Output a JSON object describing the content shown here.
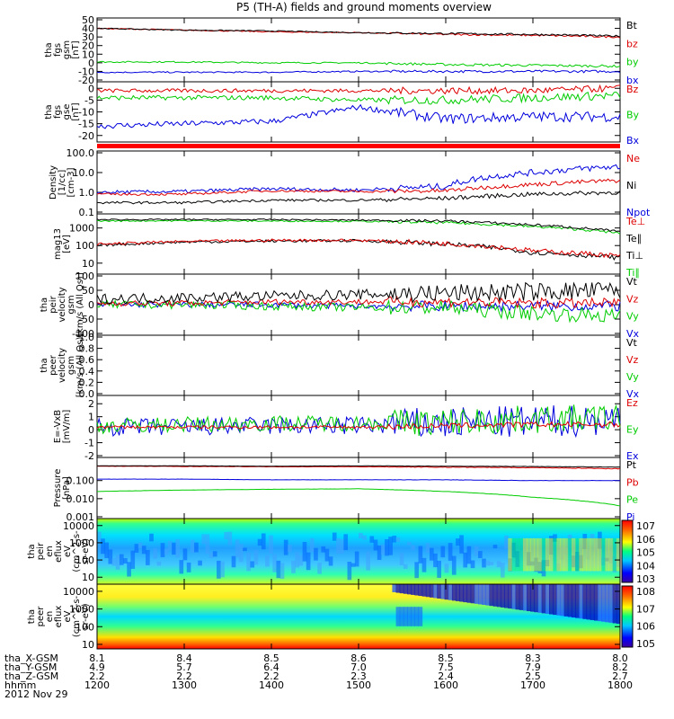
{
  "title": "P5 (TH-A) fields and ground moments overview",
  "colors": {
    "black": "#000000",
    "red": "#dd0000",
    "green": "#00cc00",
    "blue": "#0000dd"
  },
  "panels": [
    {
      "id": "fgs-gsm",
      "ylabel": [
        "tha",
        "fgs",
        "gsm",
        "[nT]"
      ],
      "ticks": [
        50,
        40,
        30,
        20,
        10,
        0,
        -10,
        -20
      ],
      "range": [
        -20,
        50
      ],
      "legend": [
        {
          "text": "Bt",
          "color": "black"
        },
        {
          "text": "bz",
          "color": "red"
        },
        {
          "text": "by",
          "color": "green"
        },
        {
          "text": "bx",
          "color": "blue"
        }
      ]
    },
    {
      "id": "fgs-gse",
      "ylabel": [
        "tha",
        "fgs",
        "gse",
        "[nT]"
      ],
      "ticks": [
        0,
        -5,
        -10,
        -15,
        -20
      ],
      "range": [
        -22,
        2
      ],
      "legend": [
        {
          "text": "Bz",
          "color": "red"
        },
        {
          "text": "By",
          "color": "green"
        },
        {
          "text": "Bx",
          "color": "blue"
        }
      ]
    },
    {
      "id": "density",
      "ylabel": [
        "Density",
        "[1/cc]",
        "[cm-3]"
      ],
      "ticks": [
        "100.0",
        "10.0",
        "1.0",
        "0.1"
      ],
      "range": [
        0.1,
        100
      ],
      "legend": [
        {
          "text": "Ne",
          "color": "red"
        },
        {
          "text": "Ni",
          "color": "black"
        },
        {
          "text": "Npot",
          "color": "blue"
        }
      ]
    },
    {
      "id": "temp",
      "ylabel": [
        "mag13",
        "[eV]"
      ],
      "ticks": [
        1000,
        100,
        10
      ],
      "range": [
        3,
        5000
      ],
      "legend": [
        {
          "text": "Te⊥",
          "color": "red"
        },
        {
          "text": "Te∥",
          "color": "black"
        },
        {
          "text": "Ti⊥",
          "color": "black"
        },
        {
          "text": "Ti∥",
          "color": "green"
        }
      ]
    },
    {
      "id": "peir-vel",
      "ylabel": [
        "tha",
        "peir",
        "velocity",
        "gsm",
        "[km/s (All Qs)]"
      ],
      "ticks": [
        100,
        50,
        0,
        -50,
        -100
      ],
      "range": [
        -100,
        100
      ],
      "legend": [
        {
          "text": "Vt",
          "color": "black"
        },
        {
          "text": "Vz",
          "color": "red"
        },
        {
          "text": "Vy",
          "color": "green"
        },
        {
          "text": "Vx",
          "color": "blue"
        }
      ]
    },
    {
      "id": "peer-vel",
      "ylabel": [
        "tha",
        "peer",
        "velocity",
        "gsm",
        "[km/s (All Qs)]"
      ],
      "ticks": [
        "1.0",
        "0.8",
        "0.6",
        "0.4",
        "0.2",
        "0.0"
      ],
      "range": [
        0,
        1
      ],
      "legend": [
        {
          "text": "Vt",
          "color": "black"
        },
        {
          "text": "Vz",
          "color": "red"
        },
        {
          "text": "Vy",
          "color": "green"
        },
        {
          "text": "Vx",
          "color": "blue"
        }
      ]
    },
    {
      "id": "efield",
      "ylabel": [
        "E=-VxB",
        "[mV/m]"
      ],
      "ticks": [
        2,
        1,
        0,
        -1,
        -2
      ],
      "range": [
        -2,
        2.5
      ],
      "legend": [
        {
          "text": "Ez",
          "color": "red"
        },
        {
          "text": "Ey",
          "color": "green"
        },
        {
          "text": "Ex",
          "color": "blue"
        }
      ]
    },
    {
      "id": "pressure",
      "ylabel": [
        "Pressure",
        "[nPa]"
      ],
      "ticks": [
        "0.100",
        "0.010",
        "0.001"
      ],
      "range": [
        0.001,
        1.5
      ],
      "legend": [
        {
          "text": "Pt",
          "color": "black"
        },
        {
          "text": "Pb",
          "color": "red"
        },
        {
          "text": "Pe",
          "color": "green"
        },
        {
          "text": "Pi",
          "color": "blue"
        }
      ]
    },
    {
      "id": "peir-eflux",
      "ylabel": [
        "tha",
        "peir",
        "en",
        "eflux",
        "eV",
        "(cm^2-s-",
        "sr-eV)"
      ],
      "ticks": [
        10000,
        1000,
        100,
        10
      ],
      "range": [
        5,
        20000
      ],
      "colorbar": [
        "10^7",
        "10^6",
        "10^5",
        "10^4",
        "10^3"
      ]
    },
    {
      "id": "peer-eflux",
      "ylabel": [
        "tha",
        "peer",
        "en",
        "eflux",
        "eV",
        "(cm^2-s-",
        "sr-eV)"
      ],
      "ticks": [
        10000,
        1000,
        100,
        10
      ],
      "range": [
        7,
        20000
      ],
      "colorbar": [
        "10^8",
        "10^7",
        "10^6",
        "10^5"
      ]
    }
  ],
  "chart_data": {
    "type": "line",
    "title": "P5 (TH-A) fields and ground moments overview",
    "x_time_hhmm": [
      "1200",
      "1300",
      "1400",
      "1500",
      "1600",
      "1700",
      "1800"
    ],
    "date": "2012 Nov 29",
    "series": [
      {
        "panel": "fgs-gsm",
        "name": "Bt",
        "values": [
          40,
          38,
          37,
          35,
          34,
          33,
          31
        ]
      },
      {
        "panel": "fgs-gsm",
        "name": "bz",
        "values": [
          40,
          38,
          36,
          35,
          33,
          32,
          30
        ]
      },
      {
        "panel": "fgs-gsm",
        "name": "by",
        "values": [
          1,
          1,
          0,
          0,
          -2,
          -3,
          -4
        ]
      },
      {
        "panel": "fgs-gsm",
        "name": "bx",
        "values": [
          -11,
          -11,
          -11,
          -10,
          -10,
          -10,
          -10
        ]
      },
      {
        "panel": "fgs-gse",
        "name": "Bz",
        "values": [
          -1,
          -1,
          -1,
          -1,
          -1,
          -1,
          0
        ]
      },
      {
        "panel": "fgs-gse",
        "name": "By",
        "values": [
          -4,
          -4,
          -4,
          -5,
          -5,
          -4,
          -3
        ]
      },
      {
        "panel": "fgs-gse",
        "name": "Bx",
        "values": [
          -16,
          -15,
          -14,
          -8,
          -13,
          -12,
          -12
        ]
      },
      {
        "panel": "density",
        "name": "Ne",
        "values": [
          0.8,
          0.8,
          1.2,
          1.1,
          1.2,
          2.5,
          4.0
        ]
      },
      {
        "panel": "density",
        "name": "Ni",
        "values": [
          0.3,
          0.3,
          0.4,
          0.4,
          0.5,
          0.8,
          1.0
        ]
      },
      {
        "panel": "density",
        "name": "Npot",
        "values": [
          1.0,
          1.1,
          1.5,
          1.3,
          2.0,
          10.0,
          20.0
        ]
      },
      {
        "panel": "temp",
        "name": "Te⊥",
        "values": [
          120,
          170,
          200,
          200,
          130,
          50,
          25
        ]
      },
      {
        "panel": "temp",
        "name": "Te∥",
        "values": [
          100,
          160,
          180,
          190,
          120,
          40,
          20
        ]
      },
      {
        "panel": "temp",
        "name": "Ti⊥",
        "values": [
          3000,
          3000,
          3000,
          2800,
          2500,
          1500,
          600
        ]
      },
      {
        "panel": "temp",
        "name": "Ti∥",
        "values": [
          2500,
          2600,
          2500,
          2400,
          2000,
          1200,
          500
        ]
      },
      {
        "panel": "peir-vel",
        "name": "Vt",
        "values": [
          20,
          25,
          30,
          35,
          40,
          45,
          50
        ]
      },
      {
        "panel": "peir-vel",
        "name": "Vz",
        "values": [
          5,
          5,
          10,
          10,
          10,
          5,
          5
        ]
      },
      {
        "panel": "peir-vel",
        "name": "Vy",
        "values": [
          0,
          0,
          -5,
          -10,
          -10,
          -30,
          -40
        ]
      },
      {
        "panel": "peir-vel",
        "name": "Vx",
        "values": [
          0,
          0,
          0,
          -5,
          -5,
          -5,
          -5
        ]
      },
      {
        "panel": "efield",
        "name": "Ez",
        "values": [
          0.2,
          0.2,
          0.2,
          0.2,
          0.3,
          0.4,
          0.4
        ]
      },
      {
        "panel": "efield",
        "name": "Ey",
        "values": [
          0.3,
          0.4,
          0.5,
          0.5,
          0.6,
          0.8,
          0.9
        ]
      },
      {
        "panel": "efield",
        "name": "Ex",
        "values": [
          0.2,
          0.2,
          0.3,
          0.3,
          0.5,
          0.6,
          0.8
        ]
      },
      {
        "panel": "pressure",
        "name": "Pt",
        "values": [
          0.65,
          0.65,
          0.62,
          0.65,
          0.62,
          0.6,
          0.55
        ]
      },
      {
        "panel": "pressure",
        "name": "Pb",
        "values": [
          0.62,
          0.6,
          0.58,
          0.58,
          0.55,
          0.52,
          0.45
        ]
      },
      {
        "panel": "pressure",
        "name": "Pe",
        "values": [
          0.025,
          0.03,
          0.033,
          0.035,
          0.025,
          0.012,
          0.004
        ]
      },
      {
        "panel": "pressure",
        "name": "Pi",
        "values": [
          0.12,
          0.12,
          0.11,
          0.11,
          0.11,
          0.1,
          0.1
        ]
      }
    ]
  },
  "ephemeris": {
    "labels": [
      "tha_X-GSM",
      "tha_Y-GSM",
      "tha_Z-GSM",
      "hhmm",
      "2012 Nov 29"
    ],
    "columns": [
      [
        "8.1",
        "4.9",
        "2.2",
        "1200"
      ],
      [
        "8.4",
        "5.7",
        "2.2",
        "1300"
      ],
      [
        "8.5",
        "6.4",
        "2.2",
        "1400"
      ],
      [
        "8.6",
        "7.0",
        "2.3",
        "1500"
      ],
      [
        "8.5",
        "7.5",
        "2.4",
        "1600"
      ],
      [
        "8.3",
        "7.9",
        "2.5",
        "1700"
      ],
      [
        "8.0",
        "8.2",
        "2.7",
        "1800"
      ]
    ]
  }
}
